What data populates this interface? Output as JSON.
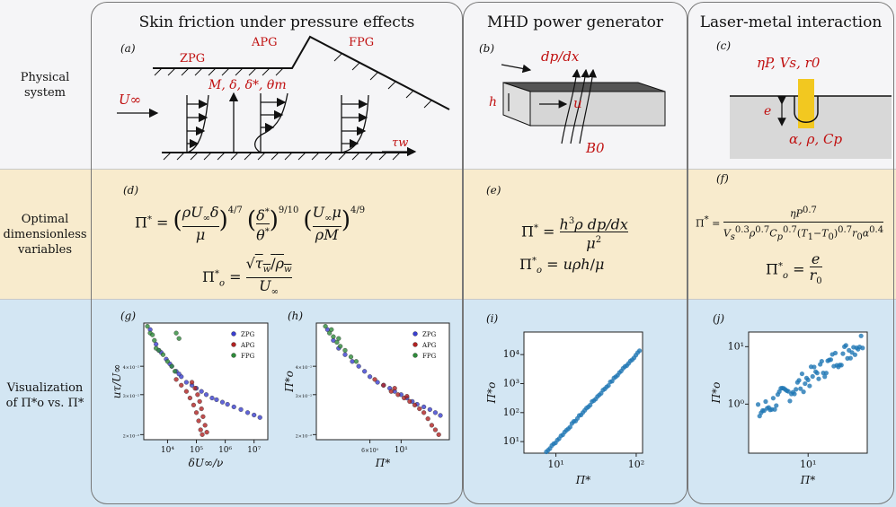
{
  "rows": {
    "physical": [
      "Physical",
      "system"
    ],
    "optimal": [
      "Optimal",
      "dimensionless",
      "variables"
    ],
    "visual": [
      "Visualization",
      "of Π*o vs. Π*"
    ]
  },
  "columns": {
    "skin_friction": "Skin friction under pressure effects",
    "mhd": "MHD power generator",
    "laser": "Laser-metal interaction"
  },
  "panel_labels": {
    "a": "(a)",
    "b": "(b)",
    "c": "(c)",
    "d": "(d)",
    "e": "(e)",
    "f": "(f)",
    "g": "(g)",
    "h": "(h)",
    "i": "(i)",
    "j": "(j)"
  },
  "panel_a": {
    "zpg": "ZPG",
    "apg": "APG",
    "fpg": "FPG",
    "params": "M, δ, δ*, θm",
    "u_inf": "U∞",
    "tau": "τw"
  },
  "panel_b": {
    "dpdx": "dp/dx",
    "h": "h",
    "u": "u",
    "b0": "B0"
  },
  "panel_c": {
    "params": "ηP, Vs, r0",
    "e": "e",
    "props": "α, ρ, Cp"
  },
  "equations": {
    "d_main": "Π* = (ρU∞δ/μ)^(4/7) (δ*/θ*)^(9/10) (U∞μ/ρM)^(4/9)",
    "d_out": "Π*o = √(τw/ρw) / U∞",
    "e_main": "Π* = h³ρ(dp/dx)/μ²",
    "e_out": "Π*o = uρh/μ",
    "f_main": "Π* = ηP^0.7 / (Vs^0.3 ρ^0.7 Cp^0.7 (T1−T0)^0.7 r0 α^0.4)",
    "f_out": "Π*o = e/r0"
  },
  "colors": {
    "accent_red": "#c01010",
    "zpg": "#3a3fd0",
    "apg": "#b22222",
    "fpg": "#2e8b3a",
    "scatter": "#1f77b4"
  },
  "chart_data": [
    {
      "type": "scatter",
      "panel": "g",
      "scale": "log-log",
      "xlabel": "δU∞/ν",
      "ylabel": "uτ/U∞",
      "xticks": [
        "10^4",
        "10^5",
        "10^6",
        "10^7"
      ],
      "yticks": [
        "2×10^-2",
        "3×10^-2",
        "4×10^-2"
      ],
      "xlim": [
        1500.0,
        30000000.0
      ],
      "ylim": [
        0.019,
        0.062
      ],
      "legend": "top-right",
      "series": [
        {
          "name": "ZPG",
          "color": "#3a3fd0",
          "points": [
            [
              2500,
              0.058
            ],
            [
              4000,
              0.05
            ],
            [
              6000,
              0.046
            ],
            [
              9000,
              0.043
            ],
            [
              14000,
              0.04
            ],
            [
              20000,
              0.038
            ],
            [
              30000,
              0.036
            ],
            [
              45000,
              0.034
            ],
            [
              70000,
              0.033
            ],
            [
              100000,
              0.032
            ],
            [
              150000,
              0.031
            ],
            [
              220000,
              0.03
            ],
            [
              350000,
              0.029
            ],
            [
              500000,
              0.0285
            ],
            [
              800000,
              0.0278
            ],
            [
              1200000,
              0.0272
            ],
            [
              2000000,
              0.0265
            ],
            [
              3500000,
              0.0258
            ],
            [
              6000000,
              0.025
            ],
            [
              10000000,
              0.0244
            ],
            [
              16000000,
              0.0238
            ],
            [
              5000,
              0.047
            ],
            [
              12000,
              0.041
            ],
            [
              25000,
              0.037
            ]
          ]
        },
        {
          "name": "APG",
          "color": "#b22222",
          "points": [
            [
              20000,
              0.035
            ],
            [
              30000,
              0.033
            ],
            [
              45000,
              0.031
            ],
            [
              60000,
              0.029
            ],
            [
              80000,
              0.027
            ],
            [
              100000,
              0.025
            ],
            [
              120000,
              0.023
            ],
            [
              140000,
              0.021
            ],
            [
              160000,
              0.02
            ],
            [
              70000,
              0.034
            ],
            [
              90000,
              0.032
            ],
            [
              110000,
              0.03
            ],
            [
              130000,
              0.028
            ],
            [
              150000,
              0.026
            ],
            [
              170000,
              0.024
            ],
            [
              200000,
              0.022
            ],
            [
              230000,
              0.0205
            ]
          ]
        },
        {
          "name": "FPG",
          "color": "#2e8b3a",
          "points": [
            [
              2000,
              0.06
            ],
            [
              2500,
              0.056
            ],
            [
              3000,
              0.055
            ],
            [
              3500,
              0.052
            ],
            [
              4000,
              0.048
            ],
            [
              5000,
              0.047
            ],
            [
              7000,
              0.045
            ],
            [
              10000,
              0.042
            ],
            [
              14000,
              0.04
            ],
            [
              20000,
              0.056
            ],
            [
              25000,
              0.053
            ],
            [
              18000,
              0.038
            ]
          ]
        }
      ]
    },
    {
      "type": "scatter",
      "panel": "h",
      "scale": "log-log",
      "xlabel": "Π*",
      "ylabel": "Π*o",
      "xticks": [
        "6×10^0",
        "10^1"
      ],
      "yticks": [
        "2×10^-2",
        "3×10^-2",
        "4×10^-2"
      ],
      "xlim": [
        2.5,
        22
      ],
      "ylim": [
        0.019,
        0.062
      ],
      "legend": "top-right",
      "series": [
        {
          "name": "ZPG",
          "color": "#3a3fd0",
          "points": [
            [
              3.0,
              0.058
            ],
            [
              3.3,
              0.052
            ],
            [
              3.6,
              0.048
            ],
            [
              4.0,
              0.045
            ],
            [
              4.5,
              0.042
            ],
            [
              5.0,
              0.04
            ],
            [
              5.5,
              0.038
            ],
            [
              6.0,
              0.036
            ],
            [
              6.8,
              0.034
            ],
            [
              7.5,
              0.033
            ],
            [
              8.3,
              0.032
            ],
            [
              9.0,
              0.031
            ],
            [
              10,
              0.03
            ],
            [
              11,
              0.029
            ],
            [
              12,
              0.028
            ],
            [
              13,
              0.0272
            ],
            [
              14.5,
              0.0265
            ],
            [
              16,
              0.0258
            ],
            [
              17.5,
              0.025
            ],
            [
              19,
              0.0243
            ]
          ]
        },
        {
          "name": "APG",
          "color": "#b22222",
          "points": [
            [
              6.5,
              0.035
            ],
            [
              7.5,
              0.033
            ],
            [
              8.5,
              0.031
            ],
            [
              9.5,
              0.03
            ],
            [
              10.5,
              0.029
            ],
            [
              11.5,
              0.028
            ],
            [
              12.5,
              0.027
            ],
            [
              13.5,
              0.026
            ],
            [
              14.5,
              0.025
            ],
            [
              15.5,
              0.0235
            ],
            [
              16.5,
              0.022
            ],
            [
              17.5,
              0.021
            ],
            [
              18.5,
              0.02
            ],
            [
              9,
              0.032
            ],
            [
              11,
              0.0295
            ]
          ]
        },
        {
          "name": "FPG",
          "color": "#2e8b3a",
          "points": [
            [
              2.9,
              0.06
            ],
            [
              3.1,
              0.056
            ],
            [
              3.3,
              0.054
            ],
            [
              3.5,
              0.051
            ],
            [
              3.7,
              0.049
            ],
            [
              4.0,
              0.047
            ],
            [
              4.4,
              0.044
            ],
            [
              4.8,
              0.042
            ],
            [
              3.2,
              0.058
            ],
            [
              3.6,
              0.053
            ]
          ]
        }
      ]
    },
    {
      "type": "scatter",
      "panel": "i",
      "scale": "log-log",
      "xlabel": "Π*",
      "ylabel": "Π*o",
      "xticks": [
        "10^1",
        "10^2"
      ],
      "yticks": [
        "10^1",
        "10^2",
        "10^3",
        "10^4"
      ],
      "xlim": [
        4,
        120
      ],
      "ylim": [
        4,
        60000
      ],
      "series": [
        {
          "name": "",
          "color": "#1f77b4",
          "relation": "y = 0.01·x^3 (approx.)",
          "x_range": [
            5,
            110
          ],
          "n_points": 60
        }
      ]
    },
    {
      "type": "scatter",
      "panel": "j",
      "scale": "log-log",
      "xlabel": "Π*",
      "ylabel": "Π*o",
      "xticks": [
        "10^1"
      ],
      "yticks": [
        "10^0",
        "10^1"
      ],
      "xlim": [
        2.2,
        45
      ],
      "ylim": [
        0.14,
        18
      ],
      "series": [
        {
          "name": "",
          "color": "#1f77b4",
          "relation": "y ≈ 0.22·x^1.1 with scatter",
          "x_range": [
            2.8,
            40
          ],
          "n_points": 70
        }
      ]
    }
  ]
}
